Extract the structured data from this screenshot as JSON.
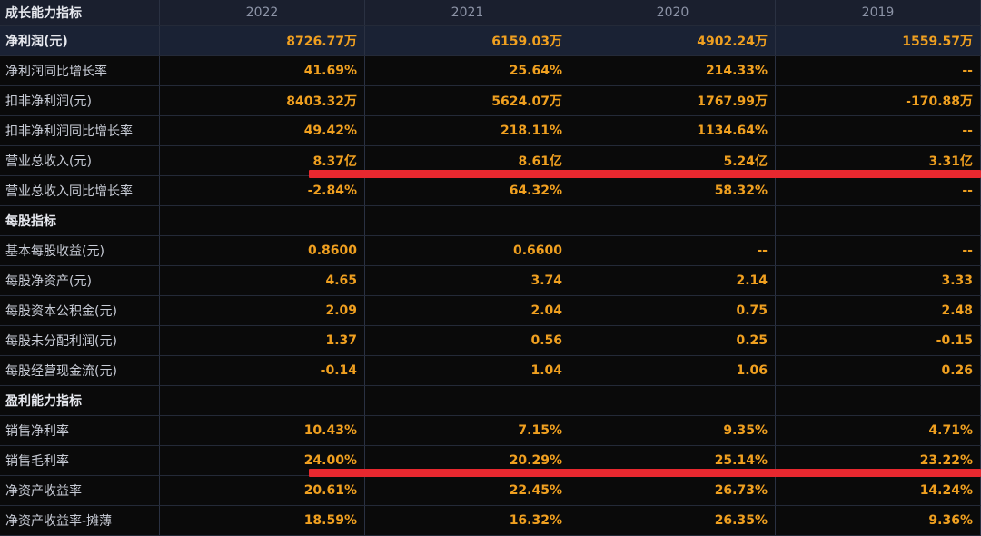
{
  "header": {
    "title": "成长能力指标",
    "years": [
      "2022",
      "2021",
      "2020",
      "2019"
    ]
  },
  "rows": [
    {
      "type": "bold",
      "label": "净利润(元)",
      "values": [
        "8726.77万",
        "6159.03万",
        "4902.24万",
        "1559.57万"
      ]
    },
    {
      "type": "data",
      "label": "净利润同比增长率",
      "values": [
        "41.69%",
        "25.64%",
        "214.33%",
        "--"
      ]
    },
    {
      "type": "data",
      "label": "扣非净利润(元)",
      "values": [
        "8403.32万",
        "5624.07万",
        "1767.99万",
        "-170.88万"
      ]
    },
    {
      "type": "data",
      "label": "扣非净利润同比增长率",
      "values": [
        "49.42%",
        "218.11%",
        "1134.64%",
        "--"
      ]
    },
    {
      "type": "data",
      "label": "营业总收入(元)",
      "values": [
        "8.37亿",
        "8.61亿",
        "5.24亿",
        "3.31亿"
      ]
    },
    {
      "type": "data",
      "label": "营业总收入同比增长率",
      "values": [
        "-2.84%",
        "64.32%",
        "58.32%",
        "--"
      ]
    },
    {
      "type": "section",
      "label": "每股指标",
      "values": [
        "",
        "",
        "",
        ""
      ]
    },
    {
      "type": "data",
      "label": "基本每股收益(元)",
      "values": [
        "0.8600",
        "0.6600",
        "--",
        "--"
      ]
    },
    {
      "type": "data",
      "label": "每股净资产(元)",
      "values": [
        "4.65",
        "3.74",
        "2.14",
        "3.33"
      ]
    },
    {
      "type": "data",
      "label": "每股资本公积金(元)",
      "values": [
        "2.09",
        "2.04",
        "0.75",
        "2.48"
      ]
    },
    {
      "type": "data",
      "label": "每股未分配利润(元)",
      "values": [
        "1.37",
        "0.56",
        "0.25",
        "-0.15"
      ]
    },
    {
      "type": "data",
      "label": "每股经营现金流(元)",
      "values": [
        "-0.14",
        "1.04",
        "1.06",
        "0.26"
      ]
    },
    {
      "type": "section",
      "label": "盈利能力指标",
      "values": [
        "",
        "",
        "",
        ""
      ]
    },
    {
      "type": "data",
      "label": "销售净利率",
      "values": [
        "10.43%",
        "7.15%",
        "9.35%",
        "4.71%"
      ]
    },
    {
      "type": "data",
      "label": "销售毛利率",
      "values": [
        "24.00%",
        "20.29%",
        "25.14%",
        "23.22%"
      ]
    },
    {
      "type": "data",
      "label": "净资产收益率",
      "values": [
        "20.61%",
        "22.45%",
        "26.73%",
        "14.24%"
      ]
    },
    {
      "type": "data",
      "label": "净资产收益率-摊薄",
      "values": [
        "18.59%",
        "16.32%",
        "26.35%",
        "9.36%"
      ]
    }
  ],
  "colors": {
    "value": "#f0a020",
    "label": "#c8ccd6",
    "highlight_line": "#e8282f",
    "background": "#0a0a0a"
  }
}
